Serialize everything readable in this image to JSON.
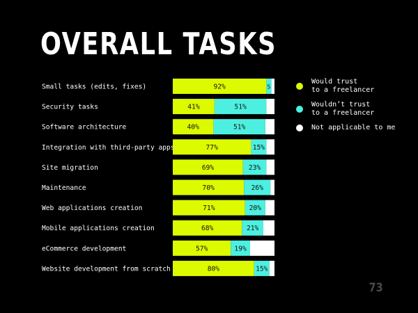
{
  "page": {
    "title": "OVERALL TASKS",
    "page_number": "73"
  },
  "legend": {
    "items": [
      {
        "label": "Would trust\nto a freelancer",
        "color": "#dcfa00"
      },
      {
        "label": "Wouldn’t trust\nto a freelancer",
        "color": "#4df0e0"
      },
      {
        "label": "Not applicable to me",
        "color": "#ffffff"
      }
    ]
  },
  "chart_data": {
    "type": "bar",
    "orientation": "horizontal",
    "stacked": true,
    "xlim": [
      0,
      100
    ],
    "categories": [
      "Small tasks (edits, fixes)",
      "Security tasks",
      "Software architecture",
      "Integration with third-party apps",
      "Site migration",
      "Maintenance",
      "Web applications creation",
      "Mobile applications creation",
      "eCommerce development",
      "Website development from scratch"
    ],
    "series": [
      {
        "name": "Would trust to a freelancer",
        "color": "#dcfa00",
        "values": [
          92,
          41,
          40,
          77,
          69,
          70,
          71,
          68,
          57,
          80
        ]
      },
      {
        "name": "Wouldn’t trust to a freelancer",
        "color": "#4df0e0",
        "values": [
          5,
          51,
          51,
          15,
          23,
          26,
          20,
          21,
          19,
          15
        ]
      },
      {
        "name": "Not applicable to me",
        "color": "#ffffff",
        "values": [
          3,
          8,
          9,
          8,
          8,
          4,
          9,
          11,
          24,
          5
        ]
      }
    ],
    "labeled_series": [
      0,
      1
    ],
    "value_suffix": "%"
  }
}
